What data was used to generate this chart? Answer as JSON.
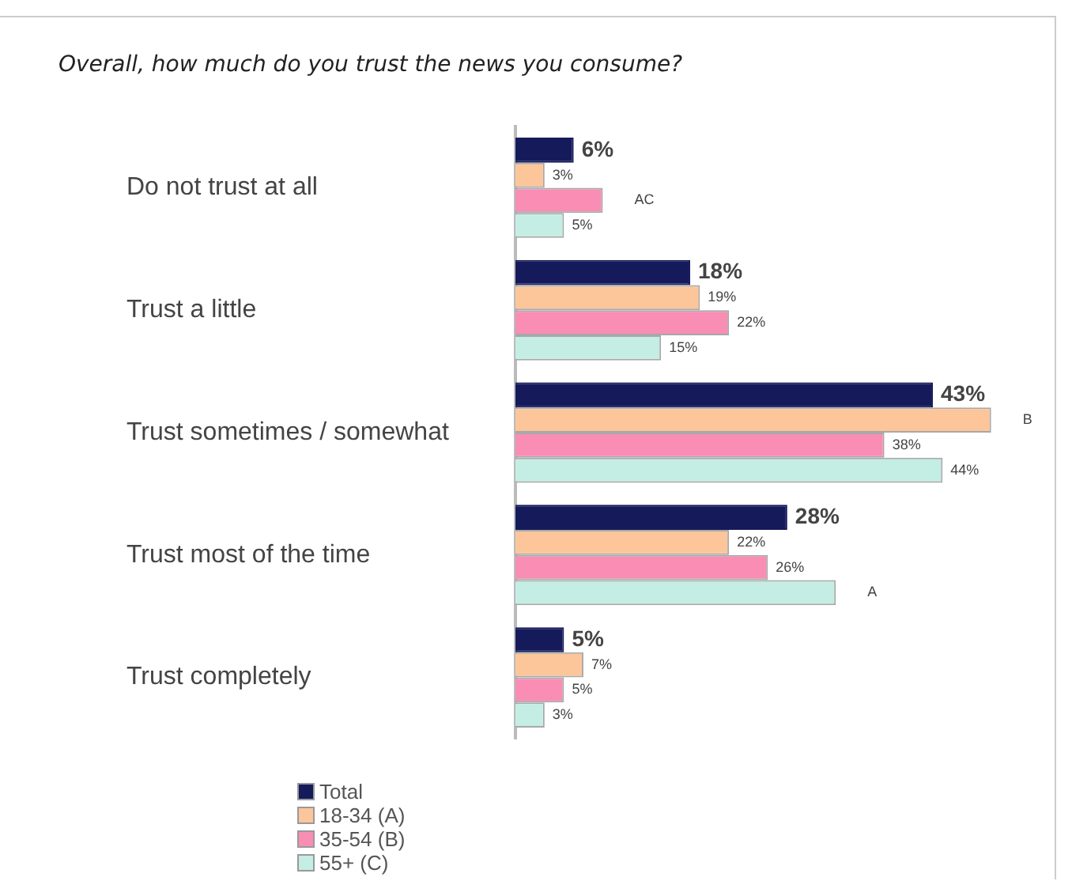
{
  "chart_data": {
    "type": "bar",
    "orientation": "horizontal",
    "title": "Overall, how much do you trust the news you consume?",
    "categories": [
      "Do not trust at all",
      "Trust a little",
      "Trust sometimes / somewhat",
      "Trust most of the time",
      "Trust completely"
    ],
    "series": [
      {
        "name": "Total",
        "color": "#141a5a",
        "values": [
          6,
          18,
          43,
          28,
          5
        ],
        "value_labels": [
          "6%",
          "18%",
          "43%",
          "28%",
          "5%"
        ]
      },
      {
        "name": "18-34 (A)",
        "color": "#fcc59a",
        "values": [
          3,
          19,
          49,
          22,
          7
        ],
        "value_labels": [
          "3%",
          "19%",
          "B",
          "22%",
          "7%"
        ]
      },
      {
        "name": "35-54 (B)",
        "color": "#f98db3",
        "values": [
          9,
          22,
          38,
          26,
          5
        ],
        "value_labels": [
          "AC",
          "22%",
          "38%",
          "26%",
          "5%"
        ]
      },
      {
        "name": "55+ (C)",
        "color": "#c4ede4",
        "values": [
          5,
          15,
          44,
          33,
          3
        ],
        "value_labels": [
          "5%",
          "15%",
          "44%",
          "A",
          "3%"
        ]
      }
    ],
    "tick_labels": "y",
    "grid": false,
    "legend": "bottom left"
  }
}
